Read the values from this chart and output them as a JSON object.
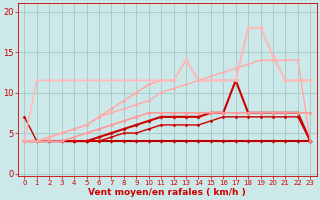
{
  "background_color": "#cce8e8",
  "grid_color": "#a0c8c8",
  "xlabel": "Vent moyen/en rafales ( km/h )",
  "xlabel_color": "#cc0000",
  "xlabel_fontsize": 6.5,
  "tick_color": "#cc0000",
  "ytick_fontsize": 6.0,
  "xtick_fontsize": 5.0,
  "xlim": [
    -0.5,
    23.5
  ],
  "ylim": [
    -0.3,
    21
  ],
  "yticks": [
    0,
    5,
    10,
    15,
    20
  ],
  "xticks": [
    0,
    1,
    2,
    3,
    4,
    5,
    6,
    7,
    8,
    9,
    10,
    11,
    12,
    13,
    14,
    15,
    16,
    17,
    18,
    19,
    20,
    21,
    22,
    23
  ],
  "x_values": [
    0,
    1,
    2,
    3,
    4,
    5,
    6,
    7,
    8,
    9,
    10,
    11,
    12,
    13,
    14,
    15,
    16,
    17,
    18,
    19,
    20,
    21,
    22,
    23
  ],
  "series": [
    {
      "color": "#bb0000",
      "lw": 1.5,
      "marker": "D",
      "ms": 1.8,
      "y": [
        4,
        4,
        4,
        4,
        4,
        4,
        4,
        4,
        4,
        4,
        4,
        4,
        4,
        4,
        4,
        4,
        4,
        4,
        4,
        4,
        4,
        4,
        4,
        4
      ]
    },
    {
      "color": "#cc0000",
      "lw": 1.5,
      "marker": "D",
      "ms": 1.8,
      "y": [
        4,
        4,
        4,
        4,
        4,
        4,
        4.5,
        5,
        5.5,
        6,
        6.5,
        7,
        7,
        7,
        7,
        7.5,
        7.5,
        11.5,
        7.5,
        7.5,
        7.5,
        7.5,
        7.5,
        4
      ]
    },
    {
      "color": "#cc0000",
      "lw": 1.0,
      "marker": "D",
      "ms": 1.5,
      "y": [
        7,
        4,
        4,
        4,
        4,
        4,
        4,
        4.5,
        5,
        5,
        5.5,
        6,
        6,
        6,
        6,
        6.5,
        7,
        7,
        7,
        7,
        7,
        7,
        7,
        4
      ]
    },
    {
      "color": "#ff9999",
      "lw": 1.2,
      "marker": "D",
      "ms": 1.8,
      "y": [
        4,
        4,
        4,
        4,
        4.5,
        5,
        5.5,
        6,
        6.5,
        7,
        7.5,
        7.5,
        7.5,
        7.5,
        7.5,
        7.5,
        7.5,
        7.5,
        7.5,
        7.5,
        7.5,
        7.5,
        7.5,
        7.5
      ]
    },
    {
      "color": "#ffaaaa",
      "lw": 1.2,
      "marker": "D",
      "ms": 1.8,
      "y": [
        4,
        4,
        4.5,
        5,
        5.5,
        6,
        7,
        8,
        9,
        10,
        11,
        11.5,
        11.5,
        14,
        11.5,
        11.5,
        11.5,
        11.5,
        18,
        18,
        14.5,
        11.5,
        11.5,
        11.5
      ]
    },
    {
      "color": "#ffbbbb",
      "lw": 1.2,
      "marker": "D",
      "ms": 1.8,
      "y": [
        4,
        11.5,
        11.5,
        11.5,
        11.5,
        11.5,
        11.5,
        11.5,
        11.5,
        11.5,
        11.5,
        11.5,
        11.5,
        14,
        11.5,
        11.5,
        11.5,
        11.5,
        18,
        18,
        14.5,
        11.5,
        11.5,
        11.5
      ]
    },
    {
      "color": "#ffaaaa",
      "lw": 1.0,
      "marker": "D",
      "ms": 1.5,
      "y": [
        4,
        4,
        4.5,
        5,
        5.5,
        6,
        7,
        7.5,
        8,
        8.5,
        9,
        10,
        10.5,
        11,
        11.5,
        12,
        12.5,
        13,
        13.5,
        14,
        14,
        14,
        14,
        4
      ]
    }
  ]
}
